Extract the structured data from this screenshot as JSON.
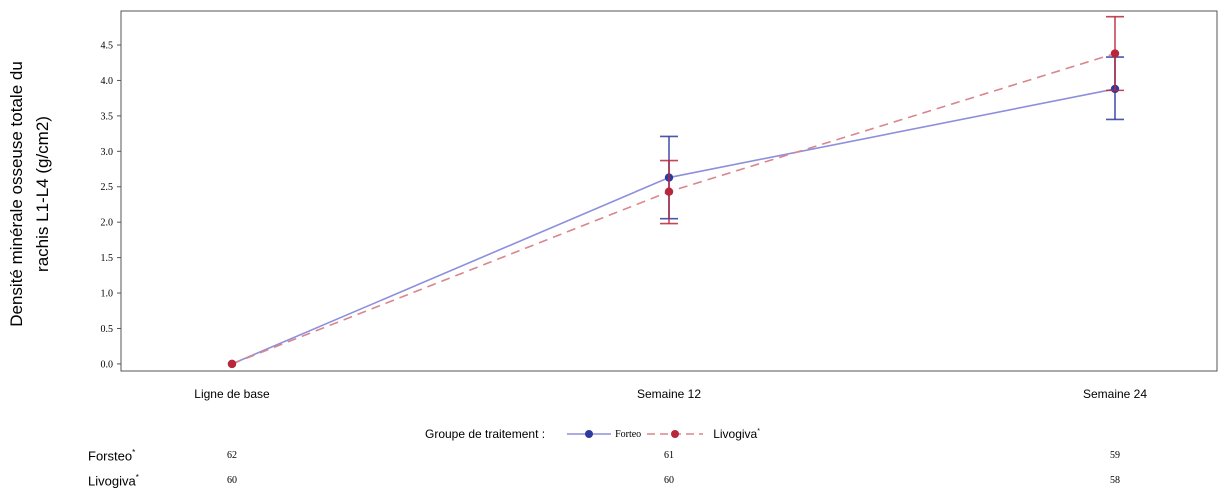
{
  "chart_data": {
    "type": "line",
    "ylabel_line1": "Densité minérale osseuse totale du",
    "ylabel_line2": "rachis L1-L4 (g/cm2)",
    "ylim": [
      -0.1,
      4.98
    ],
    "yticks": [
      "0.0",
      "0.5",
      "1.0",
      "1.5",
      "2.0",
      "2.5",
      "3.0",
      "3.5",
      "4.0",
      "4.5"
    ],
    "categories": [
      "Ligne de base",
      "Semaine 12",
      "Semaine 24"
    ],
    "grid": false,
    "series": [
      {
        "name": "Forteo",
        "color": "#2e3a9e",
        "line_color": "#8d8fdc",
        "dashed": false,
        "values": [
          0.0,
          2.63,
          3.88
        ],
        "err_low": [
          0.0,
          2.05,
          3.45
        ],
        "err_high": [
          0.0,
          3.21,
          4.33
        ]
      },
      {
        "name": "Livogiva",
        "color": "#b8283a",
        "line_color": "#d9868e",
        "dashed": true,
        "values": [
          0.0,
          2.43,
          4.38
        ],
        "err_low": [
          0.0,
          1.98,
          3.86
        ],
        "err_high": [
          0.0,
          2.87,
          4.9
        ]
      }
    ]
  },
  "legend": {
    "title": "Groupe de traitement :",
    "series1": "Forteo",
    "series2": "Livogiva",
    "series2_mark": "*"
  },
  "counts": {
    "rows": [
      {
        "label": "Forsteo",
        "mark": "*",
        "values": [
          "62",
          "61",
          "59"
        ]
      },
      {
        "label": "Livogiva",
        "mark": "*",
        "values": [
          "60",
          "60",
          "58"
        ]
      }
    ]
  }
}
